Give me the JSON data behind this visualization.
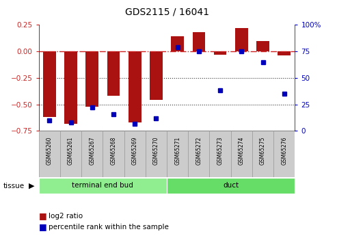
{
  "title": "GDS2115 / 16041",
  "samples": [
    "GSM65260",
    "GSM65261",
    "GSM65267",
    "GSM65268",
    "GSM65269",
    "GSM65270",
    "GSM65271",
    "GSM65272",
    "GSM65273",
    "GSM65274",
    "GSM65275",
    "GSM65276"
  ],
  "log2_ratio": [
    -0.62,
    -0.68,
    -0.52,
    -0.42,
    -0.67,
    -0.46,
    0.14,
    0.18,
    -0.03,
    0.22,
    0.1,
    -0.04
  ],
  "percentile": [
    10,
    8,
    22,
    16,
    7,
    12,
    79,
    75,
    38,
    75,
    65,
    35
  ],
  "tissue_groups": [
    {
      "label": "terminal end bud",
      "n": 6,
      "color": "#90EE90"
    },
    {
      "label": "duct",
      "n": 6,
      "color": "#66DD66"
    }
  ],
  "ylim_left": [
    -0.75,
    0.25
  ],
  "ylim_right": [
    0,
    100
  ],
  "yticks_left": [
    -0.75,
    -0.5,
    -0.25,
    0,
    0.25
  ],
  "yticks_right": [
    0,
    25,
    50,
    75,
    100
  ],
  "bar_color": "#AA1111",
  "dot_color": "#0000BB",
  "hline_color": "#CC2222",
  "gridline_color": "#333333",
  "legend_bar": "log2 ratio",
  "legend_dot": "percentile rank within the sample",
  "bar_width": 0.6,
  "sample_box_color": "#CCCCCC",
  "sample_box_edge": "#999999"
}
